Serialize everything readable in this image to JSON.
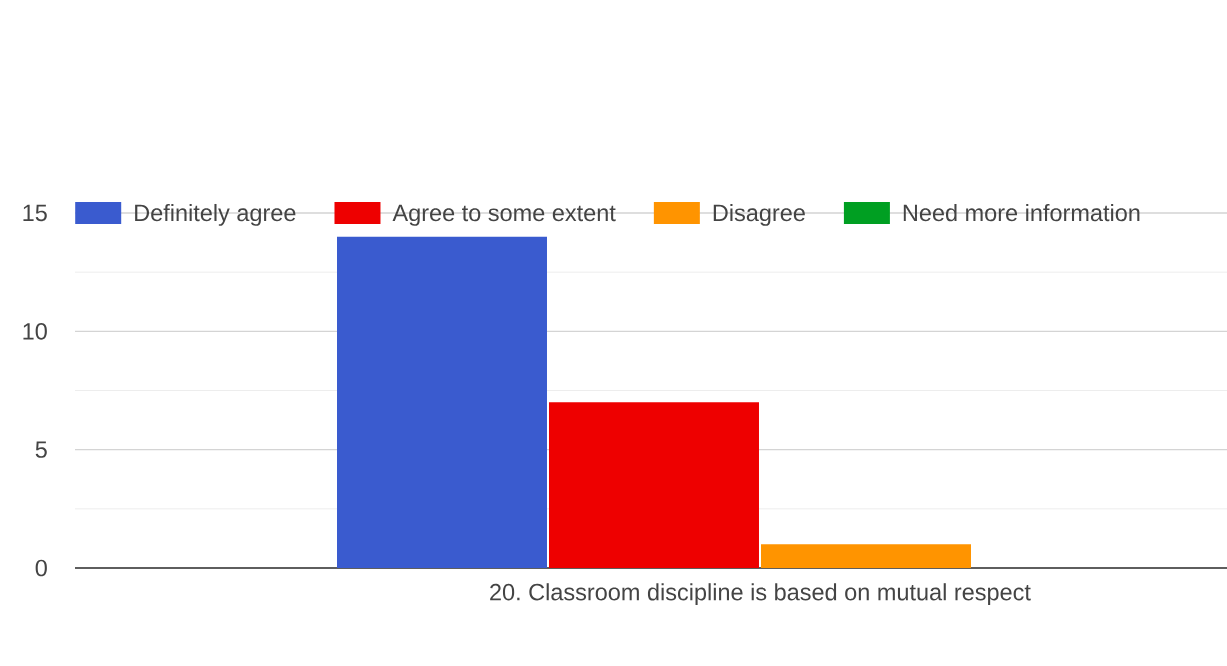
{
  "chart_data": {
    "type": "bar",
    "categories": [
      "20. Classroom discipline is based on mutual respect"
    ],
    "series": [
      {
        "name": "Definitely agree",
        "color": "#3a5bcf",
        "values": [
          14
        ]
      },
      {
        "name": "Agree to some extent",
        "color": "#ee0000",
        "values": [
          7
        ]
      },
      {
        "name": "Disagree",
        "color": "#ff9400",
        "values": [
          1
        ]
      },
      {
        "name": "Need more information",
        "color": "#009f22",
        "values": [
          0
        ]
      }
    ],
    "ylim": [
      0,
      15
    ],
    "yticks": [
      0,
      {
        "value": 2.5,
        "label": null
      },
      5,
      {
        "value": 7.5,
        "label": null
      },
      10,
      {
        "value": 12.5,
        "label": null
      },
      15
    ],
    "grid": "y",
    "legend": "top"
  }
}
